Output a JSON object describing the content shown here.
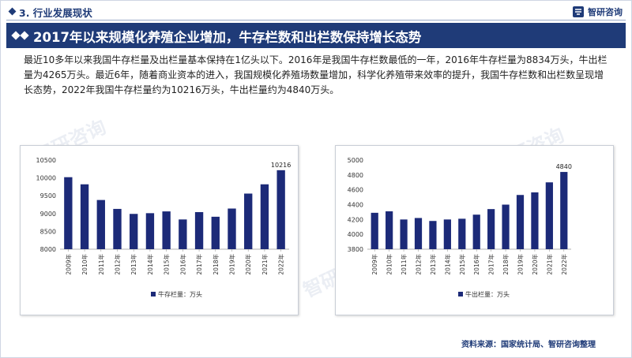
{
  "header": {
    "section_title": "3. 行业发展现状",
    "logo_text": "智研咨询"
  },
  "banner": {
    "title": "2017年以来规模化养殖企业增加，牛存栏数和出栏数保持增长态势"
  },
  "paragraph": "最近10多年以来我国牛存栏量及出栏量基本保持在1亿头以下。2016年是我国牛存栏数最低的一年，2016年牛存栏量为8834万头，牛出栏量为4265万头。最近6年，随着商业资本的进入，我国规模化养殖场数量增加，科学化养殖带来效率的提升，我国牛存栏数和出栏数呈现增长态势，2022年我国牛存栏量约为10216万头，牛出栏量约为4840万头。",
  "watermark": "智研咨询",
  "source": "资料来源：国家统计局、智研咨询整理",
  "colors": {
    "brand": "#1f3b78",
    "bar": "#1c2a78"
  },
  "chart_data": [
    {
      "type": "bar",
      "categories": [
        "2009年",
        "2010年",
        "2011年",
        "2012年",
        "2013年",
        "2014年",
        "2015年",
        "2016年",
        "2017年",
        "2018年",
        "2019年",
        "2020年",
        "2021年",
        "2022年"
      ],
      "series": [
        {
          "name": "牛存栏量：万头",
          "values": [
            10020,
            9820,
            9380,
            9130,
            8990,
            9010,
            9060,
            8834,
            9040,
            8910,
            9140,
            9560,
            9820,
            10216
          ]
        }
      ],
      "ylim": [
        8000,
        10500
      ],
      "yticks": [
        8000,
        8500,
        9000,
        9500,
        10000,
        10500
      ],
      "data_labels": {
        "13": "10216"
      },
      "legend": "bottom",
      "grid": false
    },
    {
      "type": "bar",
      "categories": [
        "2009年",
        "2010年",
        "2011年",
        "2012年",
        "2013年",
        "2014年",
        "2015年",
        "2016年",
        "2017年",
        "2018年",
        "2019年",
        "2020年",
        "2021年",
        "2022年"
      ],
      "series": [
        {
          "name": "牛出栏量：万头",
          "values": [
            4290,
            4310,
            4200,
            4220,
            4180,
            4200,
            4210,
            4265,
            4340,
            4400,
            4530,
            4565,
            4700,
            4840
          ]
        }
      ],
      "ylim": [
        3800,
        5000
      ],
      "yticks": [
        3800,
        4000,
        4200,
        4400,
        4600,
        4800,
        5000
      ],
      "data_labels": {
        "13": "4840"
      },
      "legend": "bottom",
      "grid": false
    }
  ]
}
